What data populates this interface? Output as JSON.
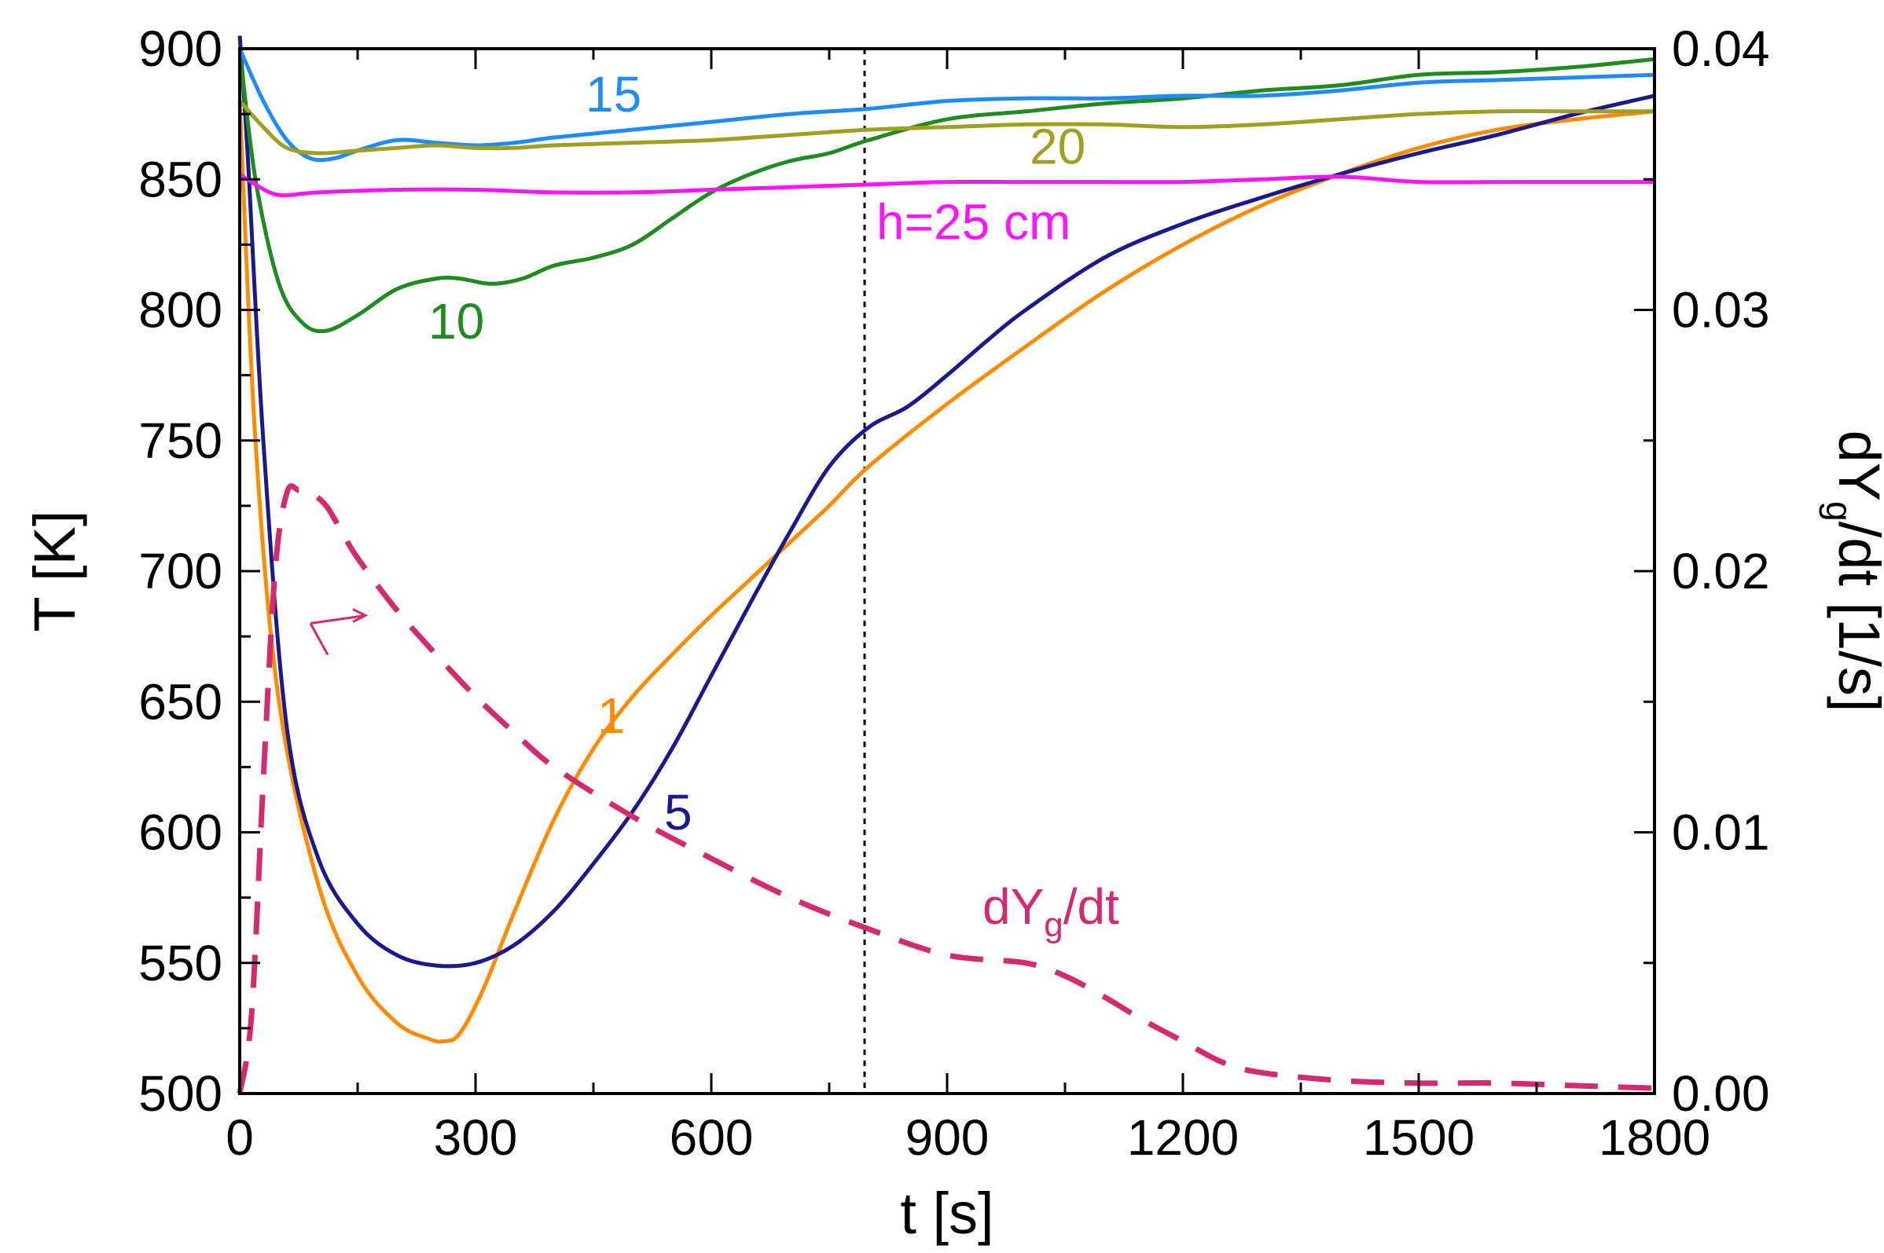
{
  "chart_data": {
    "type": "line",
    "xlabel": "t [s]",
    "ylabel_left": "T [K]",
    "ylabel_right": {
      "main": "dY",
      "sub": "g",
      "tail": "/dt [1/s]"
    },
    "xlim": [
      0,
      1800
    ],
    "ylim_left": [
      500,
      900
    ],
    "ylim_right": [
      0,
      0.04
    ],
    "x_ticks": [
      "0",
      "300",
      "600",
      "900",
      "1200",
      "1500",
      "1800"
    ],
    "y_ticks_left": [
      "500",
      "550",
      "600",
      "650",
      "700",
      "750",
      "800",
      "850",
      "900"
    ],
    "y_ticks_right": [
      "0.00",
      "0.01",
      "0.02",
      "0.03",
      "0.04"
    ],
    "grid": false,
    "reference_line_x": 795,
    "colors": {
      "h1": "#ff8c00",
      "h5": "#1a1a8c",
      "h10": "#1e8c1e",
      "h15": "#1e8cff",
      "h20": "#a0a020",
      "h25": "#ff14ff",
      "rate": "#d42a6e"
    },
    "series": [
      {
        "name": "1",
        "axis": "left",
        "color_key": "h1",
        "style": "solid",
        "x": [
          0,
          20,
          50,
          100,
          150,
          200,
          240,
          260,
          280,
          310,
          350,
          400,
          450,
          500,
          550,
          600,
          650,
          700,
          750,
          800,
          900,
          1000,
          1100,
          1200,
          1300,
          1400,
          1500,
          1600,
          1700,
          1800
        ],
        "y": [
          880,
          750,
          650,
          580,
          545,
          527,
          521,
          520,
          523,
          540,
          570,
          605,
          632,
          652,
          668,
          683,
          697,
          711,
          725,
          740,
          764,
          786,
          807,
          825,
          840,
          852,
          862,
          869,
          873,
          876
        ]
      },
      {
        "name": "5",
        "axis": "left",
        "color_key": "h5",
        "style": "solid",
        "x": [
          0,
          10,
          30,
          60,
          100,
          150,
          200,
          250,
          300,
          350,
          400,
          450,
          500,
          550,
          600,
          650,
          700,
          750,
          800,
          850,
          900,
          950,
          1000,
          1100,
          1200,
          1300,
          1400,
          1500,
          1600,
          1700,
          1800
        ],
        "y": [
          905,
          860,
          750,
          640,
          590,
          565,
          553,
          549,
          550,
          557,
          570,
          588,
          608,
          632,
          660,
          688,
          715,
          740,
          755,
          763,
          775,
          788,
          800,
          820,
          833,
          843,
          852,
          860,
          867,
          875,
          882
        ]
      },
      {
        "name": "10",
        "axis": "left",
        "color_key": "h10",
        "style": "solid",
        "x": [
          0,
          20,
          50,
          80,
          110,
          150,
          200,
          250,
          280,
          320,
          360,
          400,
          450,
          500,
          550,
          600,
          650,
          700,
          750,
          800,
          900,
          1000,
          1100,
          1200,
          1300,
          1400,
          1500,
          1600,
          1700,
          1800
        ],
        "y": [
          900,
          850,
          810,
          795,
          792,
          798,
          808,
          812,
          812,
          810,
          812,
          817,
          820,
          825,
          835,
          845,
          852,
          857,
          860,
          865,
          873,
          876,
          879,
          881,
          884,
          886,
          890,
          891,
          893,
          896
        ]
      },
      {
        "name": "15",
        "axis": "left",
        "color_key": "h15",
        "style": "solid",
        "x": [
          0,
          30,
          60,
          90,
          120,
          150,
          200,
          250,
          300,
          350,
          400,
          500,
          600,
          700,
          800,
          900,
          1000,
          1100,
          1200,
          1300,
          1400,
          1500,
          1600,
          1700,
          1800
        ],
        "y": [
          900,
          880,
          865,
          858,
          858,
          861,
          865,
          864,
          863,
          864,
          866,
          869,
          872,
          875,
          877,
          880,
          881,
          881,
          882,
          882,
          884,
          887,
          888,
          889,
          890
        ]
      },
      {
        "name": "20",
        "axis": "left",
        "color_key": "h20",
        "style": "solid",
        "x": [
          0,
          30,
          60,
          100,
          150,
          200,
          250,
          300,
          350,
          400,
          500,
          600,
          700,
          800,
          900,
          1000,
          1100,
          1200,
          1300,
          1400,
          1500,
          1600,
          1700,
          1800
        ],
        "y": [
          880,
          870,
          862,
          860,
          861,
          862,
          863,
          862,
          862,
          863,
          864,
          865,
          867,
          869,
          870,
          871,
          871,
          870,
          871,
          873,
          875,
          876,
          876,
          876
        ]
      },
      {
        "name": "h=25 cm",
        "axis": "left",
        "color_key": "h25",
        "style": "solid",
        "x": [
          0,
          20,
          50,
          100,
          200,
          300,
          400,
          500,
          600,
          700,
          800,
          900,
          1000,
          1100,
          1200,
          1300,
          1400,
          1500,
          1600,
          1700,
          1800
        ],
        "y": [
          852,
          848,
          844,
          845,
          846,
          846,
          845,
          845,
          846,
          847,
          848,
          849,
          849,
          849,
          849,
          850,
          851,
          849,
          849,
          849,
          849
        ]
      },
      {
        "name": "dYg/dt",
        "axis": "right",
        "color_key": "rate",
        "style": "dashed",
        "x": [
          0,
          15,
          30,
          45,
          60,
          75,
          90,
          110,
          130,
          150,
          200,
          250,
          300,
          350,
          400,
          500,
          600,
          700,
          800,
          900,
          1000,
          1050,
          1100,
          1150,
          1200,
          1250,
          1300,
          1400,
          1500,
          1600,
          1700,
          1800
        ],
        "y": [
          0.0,
          0.003,
          0.012,
          0.02,
          0.023,
          0.0231,
          0.023,
          0.0225,
          0.0215,
          0.0205,
          0.0185,
          0.0168,
          0.0152,
          0.0138,
          0.0125,
          0.0106,
          0.009,
          0.0075,
          0.0063,
          0.0053,
          0.005,
          0.0045,
          0.0037,
          0.0028,
          0.002,
          0.0012,
          0.0008,
          0.0005,
          0.0004,
          0.0004,
          0.0003,
          0.0002
        ]
      }
    ],
    "annotations": [
      {
        "text": "15",
        "color_key": "h15",
        "x": 440,
        "y": 876
      },
      {
        "text": "20",
        "color_key": "h20",
        "x": 1005,
        "y": 856
      },
      {
        "text": "h=25 cm",
        "color_key": "h25",
        "x": 810,
        "y": 827
      },
      {
        "text": "10",
        "color_key": "h10",
        "x": 240,
        "y": 789
      },
      {
        "text": "1",
        "color_key": "h1",
        "x": 455,
        "y": 638
      },
      {
        "text": "5",
        "color_key": "h5",
        "x": 540,
        "y": 601
      }
    ],
    "rate_annotation": {
      "main": "dY",
      "sub": "g",
      "tail": "/dt",
      "color_key": "rate",
      "x": 945,
      "y": 0.0065
    },
    "arrow": {
      "color_key": "rate",
      "from": [
        90,
        680
      ],
      "to": [
        160,
        683
      ]
    }
  }
}
